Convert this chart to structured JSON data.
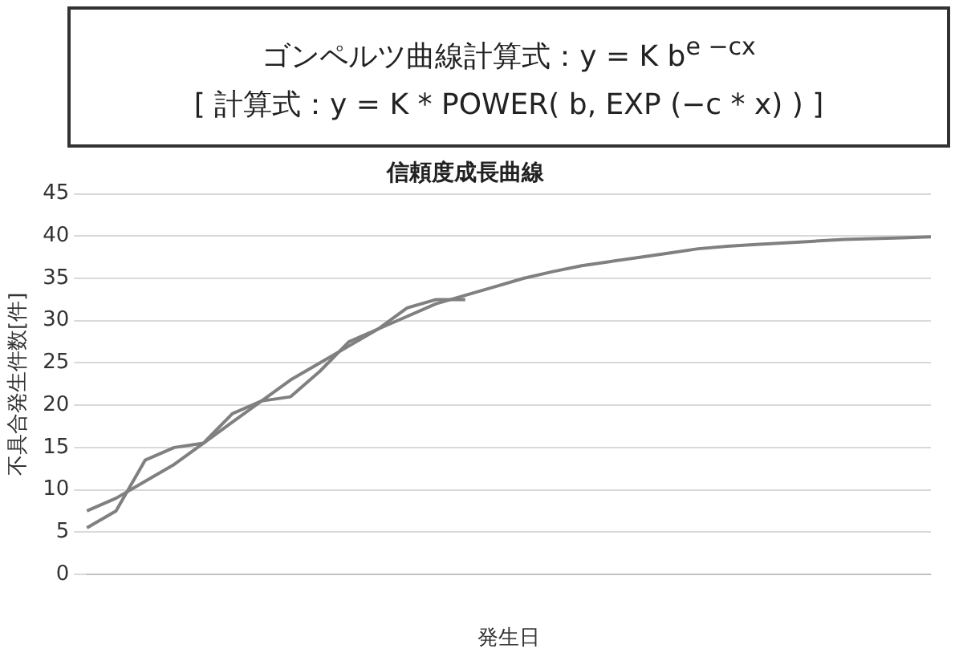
{
  "chart_data": {
    "type": "line",
    "title": "信頼度成長曲線",
    "xlabel": "発生日",
    "ylabel": "不具合発生件数[件]",
    "annotations": [
      "ゴンペルツ曲線計算式：y = K b$^{e −cx}$",
      "[ 計算式：y = K * POWER( b, EXP (−c * x) ) ]"
    ],
    "categories": [
      null,
      null,
      null,
      null,
      null,
      null,
      null,
      null,
      null,
      null,
      null,
      null,
      null,
      null,
      null,
      null,
      null,
      null,
      null,
      null,
      null,
      null,
      null,
      null,
      null,
      null,
      null,
      null,
      null,
      null
    ],
    "series": [
      {
        "color": "#808080",
        "values": [
          5.5,
          7.5,
          13.5,
          15,
          15.5,
          19,
          20.5,
          21,
          24,
          27.5,
          29,
          31.5,
          32.5,
          32.5,
          null,
          null,
          null,
          null,
          null,
          null,
          null,
          null,
          null,
          null,
          null,
          null,
          null,
          null,
          null,
          null
        ]
      },
      {
        "color": "#808080",
        "values": [
          7.5,
          9,
          11,
          13,
          15.5,
          18,
          20.5,
          23,
          25,
          27,
          29,
          30.5,
          32,
          33,
          34,
          35,
          35.8,
          36.5,
          37,
          37.5,
          38,
          38.5,
          38.8,
          39,
          39.2,
          39.4,
          39.6,
          39.7,
          39.8,
          39.9
        ]
      }
    ],
    "ylim": [
      0,
      45
    ],
    "yticks": [
      0,
      5,
      10,
      15,
      20,
      25,
      30,
      35,
      40,
      45
    ],
    "grid": "y",
    "legend": false,
    "marker": "none",
    "line_style": "solid"
  }
}
